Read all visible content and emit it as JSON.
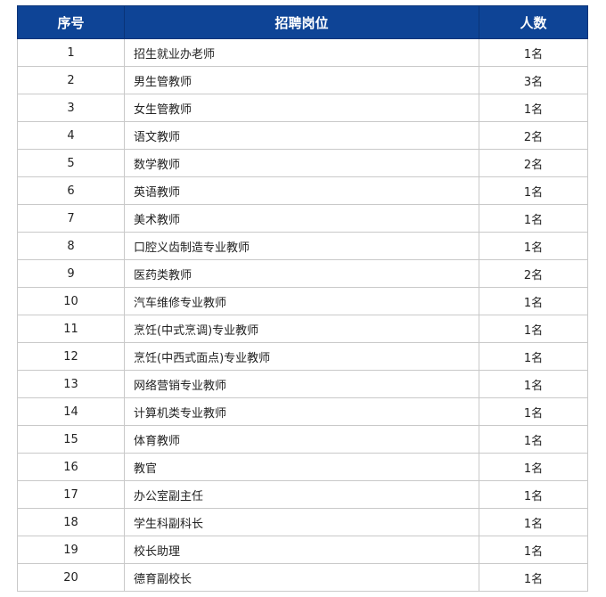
{
  "table": {
    "headers": {
      "index": "序号",
      "position": "招聘岗位",
      "count": "人数"
    },
    "rows": [
      {
        "index": "1",
        "position": "招生就业办老师",
        "count": "1名"
      },
      {
        "index": "2",
        "position": "男生管教师",
        "count": "3名"
      },
      {
        "index": "3",
        "position": "女生管教师",
        "count": "1名"
      },
      {
        "index": "4",
        "position": "语文教师",
        "count": "2名"
      },
      {
        "index": "5",
        "position": "数学教师",
        "count": "2名"
      },
      {
        "index": "6",
        "position": "英语教师",
        "count": "1名"
      },
      {
        "index": "7",
        "position": "美术教师",
        "count": "1名"
      },
      {
        "index": "8",
        "position": "口腔义齿制造专业教师",
        "count": "1名"
      },
      {
        "index": "9",
        "position": "医药类教师",
        "count": "2名"
      },
      {
        "index": "10",
        "position": "汽车维修专业教师",
        "count": "1名"
      },
      {
        "index": "11",
        "position": "烹饪(中式烹调)专业教师",
        "count": "1名"
      },
      {
        "index": "12",
        "position": "烹饪(中西式面点)专业教师",
        "count": "1名"
      },
      {
        "index": "13",
        "position": "网络营销专业教师",
        "count": "1名"
      },
      {
        "index": "14",
        "position": "计算机类专业教师",
        "count": "1名"
      },
      {
        "index": "15",
        "position": "体育教师",
        "count": "1名"
      },
      {
        "index": "16",
        "position": "教官",
        "count": "1名"
      },
      {
        "index": "17",
        "position": "办公室副主任",
        "count": "1名"
      },
      {
        "index": "18",
        "position": "学生科副科长",
        "count": "1名"
      },
      {
        "index": "19",
        "position": "校长助理",
        "count": "1名"
      },
      {
        "index": "20",
        "position": "德育副校长",
        "count": "1名"
      }
    ]
  }
}
